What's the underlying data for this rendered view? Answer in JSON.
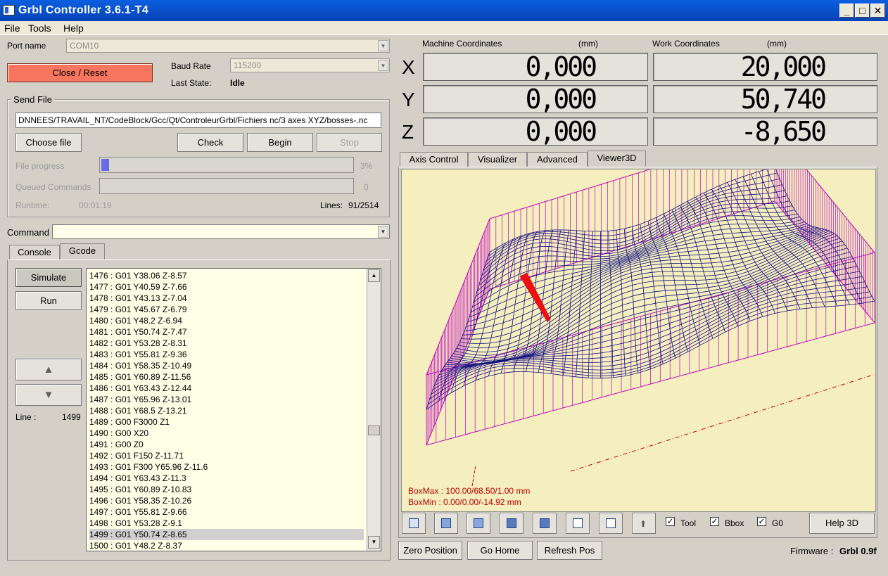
{
  "window": {
    "title": "Grbl Controller 3.6.1-T4",
    "btn_min": "_",
    "btn_max": "□",
    "btn_close": "✕"
  },
  "menu": [
    "File",
    "Tools",
    "Help"
  ],
  "connection": {
    "port_label": "Port name",
    "port_value": "COM10",
    "close_reset_label": "Close / Reset",
    "baud_label": "Baud Rate",
    "baud_value": "115200",
    "last_state_label": "Last State:",
    "last_state_value": "Idle"
  },
  "send_file": {
    "group_label": "Send File",
    "path": "DNNEES/TRAVAIL_NT/CodeBlock/Gcc/Qt/ControleurGrbl/Fichiers nc/3 axes XYZ/bosses-.nc",
    "choose_label": "Choose file",
    "check_label": "Check",
    "begin_label": "Begin",
    "stop_label": "Stop",
    "progress_label": "File progress",
    "progress_value": 0.03,
    "progress_text": "3%",
    "queued_label": "Queued Commands",
    "queued_text": "0",
    "runtime_label": "Runtime:",
    "runtime_value": "00:01:19",
    "lines_label": "Lines:",
    "lines_value": "91/2514"
  },
  "command": {
    "label": "Command",
    "value": ""
  },
  "left_tabs": {
    "console": "Console",
    "gcode": "Gcode"
  },
  "gcode_panel": {
    "simulate_label": "Simulate",
    "run_label": "Run",
    "line_label": "Line :",
    "line_value": "1499",
    "up_glyph": "▲",
    "down_glyph": "▼",
    "selected_index": 23,
    "lines": [
      "1476 : G01 Y38.06 Z-8.57",
      "1477 : G01 Y40.59 Z-7.66",
      "1478 : G01 Y43.13 Z-7.04",
      "1479 : G01 Y45.67 Z-6.79",
      "1480 : G01 Y48.2 Z-6.94",
      "1481 : G01 Y50.74 Z-7.47",
      "1482 : G01 Y53.28 Z-8.31",
      "1483 : G01 Y55.81 Z-9.36",
      "1484 : G01 Y58.35 Z-10.49",
      "1485 : G01 Y60.89 Z-11.56",
      "1486 : G01 Y63.43 Z-12.44",
      "1487 : G01 Y65.96 Z-13.01",
      "1488 : G01 Y68.5 Z-13.21",
      "1489 : G00 F3000 Z1",
      "1490 : G00 X20",
      "1491 : G00 Z0",
      "1492 : G01 F150 Z-11.71",
      "1493 : G01 F300 Y65.96 Z-11.6",
      "1494 : G01 Y63.43 Z-11.3",
      "1495 : G01 Y60.89 Z-10.83",
      "1496 : G01 Y58.35 Z-10.26",
      "1497 : G01 Y55.81 Z-9.66",
      "1498 : G01 Y53.28 Z-9.1",
      "1499 : G01 Y50.74 Z-8.65",
      "1500 : G01 Y48.2 Z-8.37"
    ]
  },
  "coords": {
    "machine_label": "Machine Coordinates",
    "work_label": "Work Coordinates",
    "unit": "(mm)",
    "axes": [
      "X",
      "Y",
      "Z"
    ],
    "machine": [
      "0,000",
      "0,000",
      "0,000"
    ],
    "work": [
      "20,000",
      "50,740",
      "-8,650"
    ]
  },
  "right_tabs": [
    "Axis Control",
    "Visualizer",
    "Advanced",
    "Viewer3D"
  ],
  "viewer": {
    "box_max": "BoxMax : 100.00/68.50/1.00 mm",
    "box_min": "BoxMin : 0.00/0.00/-14.92 mm",
    "tool_label": "Tool",
    "bbox_label": "Bbox",
    "g0_label": "G0",
    "help_label": "Help 3D",
    "colors": {
      "mesh": "#101080",
      "bbox": "#c000c0",
      "tool": "#ff0000",
      "bg": "#f5eebe",
      "rapid": "#c00000"
    }
  },
  "bottom": {
    "zero_label": "Zero Position",
    "home_label": "Go Home",
    "refresh_label": "Refresh Pos",
    "firmware_label": "Firmware :",
    "firmware_value": "Grbl 0.9f"
  }
}
